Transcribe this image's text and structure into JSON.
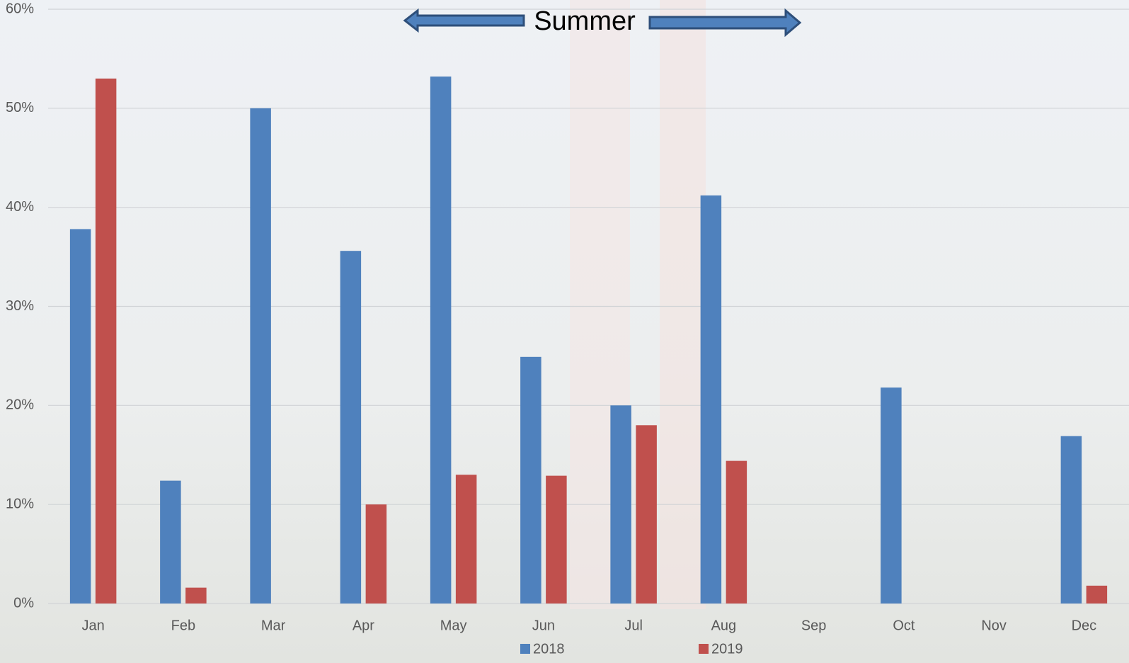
{
  "chart_data": {
    "type": "bar",
    "annotation": "Summer",
    "categories": [
      "Jan",
      "Feb",
      "Mar",
      "Apr",
      "May",
      "Jun",
      "Jul",
      "Aug",
      "Sep",
      "Oct",
      "Nov",
      "Dec"
    ],
    "series": [
      {
        "name": "2018",
        "color": "#4f81bd",
        "values": [
          37.8,
          12.4,
          50,
          35.6,
          53.2,
          24.9,
          20,
          41.2,
          0,
          21.8,
          0,
          16.9
        ]
      },
      {
        "name": "2019",
        "color": "#c0504d",
        "values": [
          53,
          1.6,
          0,
          10,
          13,
          12.9,
          18,
          14.4,
          0,
          0,
          0,
          1.8
        ]
      }
    ],
    "ylim": [
      0,
      60
    ],
    "yticks": [
      {
        "value": 0,
        "label": "0%"
      },
      {
        "value": 10,
        "label": "10%"
      },
      {
        "value": 20,
        "label": "20%"
      },
      {
        "value": 30,
        "label": "30%"
      },
      {
        "value": 40,
        "label": "40%"
      },
      {
        "value": 50,
        "label": "50%"
      },
      {
        "value": 60,
        "label": "60%"
      }
    ],
    "grid": true
  }
}
